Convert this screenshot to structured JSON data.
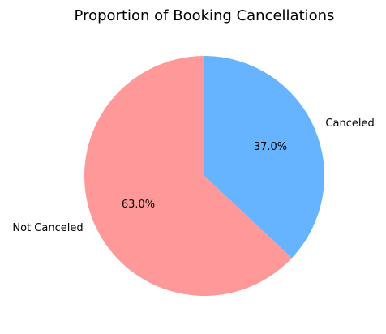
{
  "chart_data": {
    "type": "pie",
    "title": "Proportion of Booking Cancellations",
    "slices": [
      {
        "label": "Canceled",
        "value": 37.0,
        "pct_label": "37.0%",
        "color": "#66b3ff"
      },
      {
        "label": "Not Canceled",
        "value": 63.0,
        "pct_label": "63.0%",
        "color": "#ff9999"
      }
    ],
    "start_angle_deg": 90,
    "direction": "clockwise",
    "legend": "none"
  }
}
